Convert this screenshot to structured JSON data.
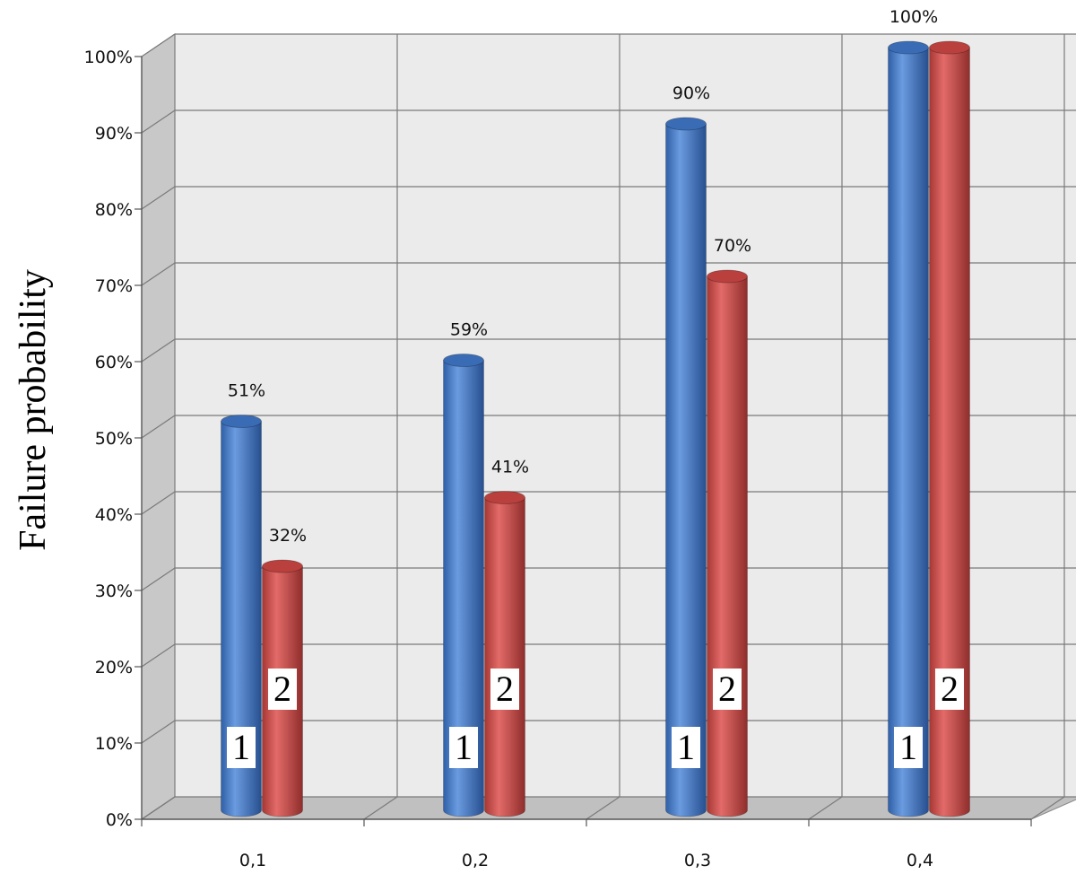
{
  "chart_data": {
    "type": "bar",
    "style": "3d-cylinder",
    "categories": [
      "0,1",
      "0,2",
      "0,3",
      "0,4"
    ],
    "series": [
      {
        "name": "1",
        "color": "#4a7cc4",
        "values": [
          51,
          59,
          90,
          100
        ]
      },
      {
        "name": "2",
        "color": "#cc4c4a",
        "values": [
          32,
          41,
          70,
          100
        ]
      }
    ],
    "data_labels": {
      "series_1": [
        "51%",
        "59%",
        "90%",
        "100%"
      ],
      "series_2": [
        "32%",
        "41%",
        "70%",
        ""
      ]
    },
    "ylabel": "Failure probability",
    "xlabel": "",
    "title": "",
    "ylim": [
      0,
      100
    ],
    "yticks": [
      "0%",
      "10%",
      "20%",
      "30%",
      "40%",
      "50%",
      "60%",
      "70%",
      "80%",
      "90%",
      "100%"
    ],
    "grid": true,
    "legend": "none",
    "wall_color": "#ebebeb",
    "side_wall_color": "#c8c8c8",
    "floor_color": "#c0c0c0"
  }
}
